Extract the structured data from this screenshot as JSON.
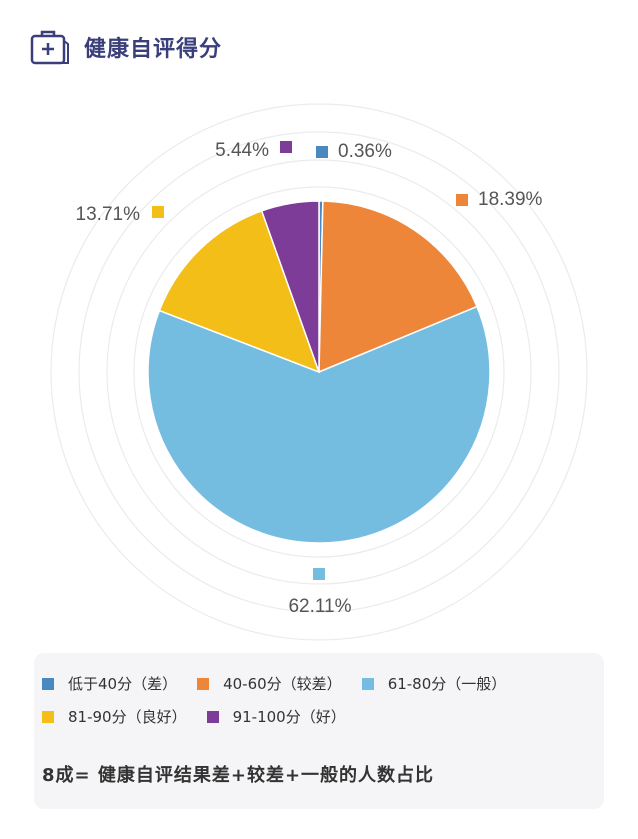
{
  "header": {
    "title": "健康自评得分",
    "icon": "medical-kit-icon",
    "color": "#3a3f7a"
  },
  "chart_data": {
    "type": "pie",
    "categories": [
      "低于40分（差）",
      "40-60分（较差）",
      "61-80分（一般）",
      "81-90分（良好）",
      "91-100分（好）"
    ],
    "values": [
      0.36,
      18.39,
      62.11,
      13.71,
      5.44
    ],
    "labels": [
      "0.36%",
      "18.39%",
      "62.11%",
      "13.71%",
      "5.44%"
    ],
    "colors": [
      "#4a88c0",
      "#ee8639",
      "#74bde0",
      "#f3be18",
      "#7d3c98"
    ],
    "legend_placement": "bottom"
  },
  "note": "8成= 健康自评结果差+较差+一般的人数占比"
}
